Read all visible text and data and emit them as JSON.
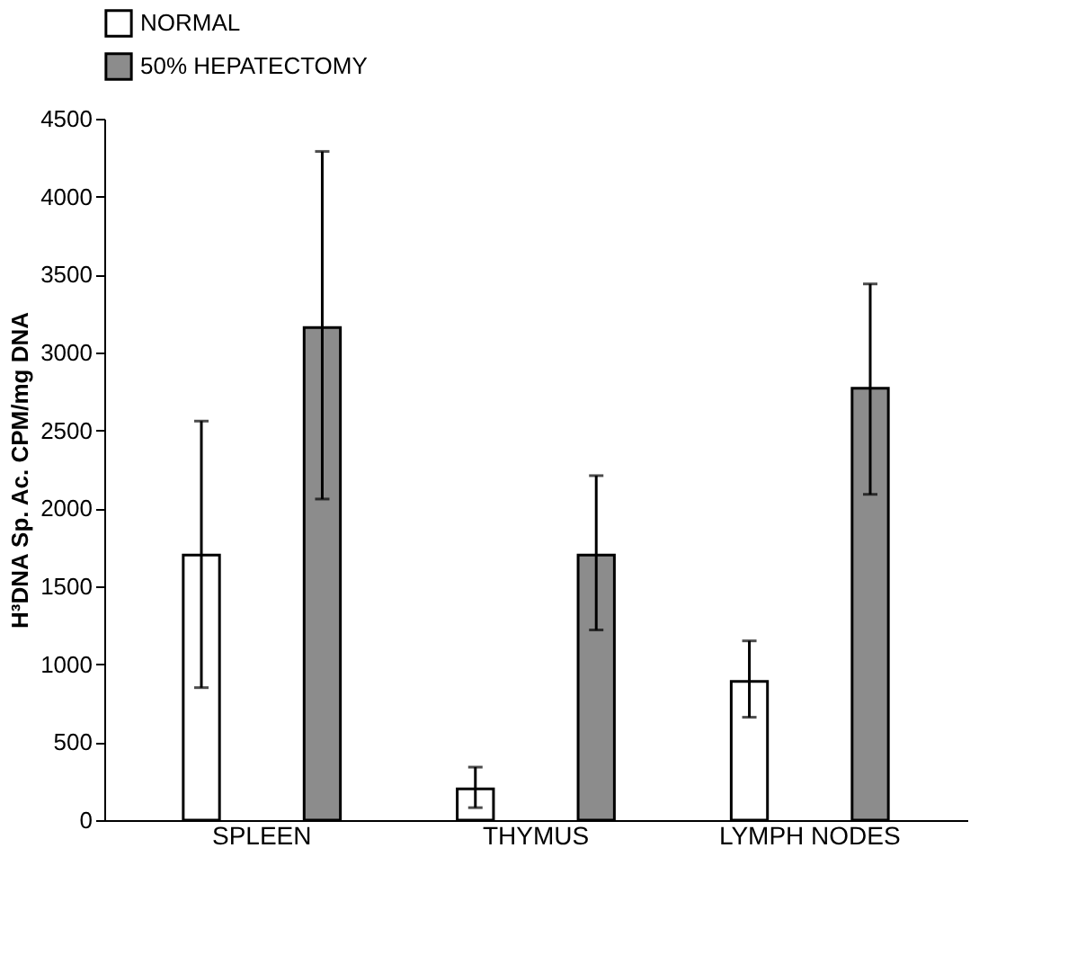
{
  "chart_data": {
    "type": "bar",
    "ylabel": "H³DNA Sp. Ac. CPM/mg DNA",
    "categories": [
      "SPLEEN",
      "THYMUS",
      "LYMPH NODES"
    ],
    "series": [
      {
        "name": "NORMAL",
        "color": "#ffffff",
        "values": [
          1700,
          200,
          890
        ],
        "errors": [
          [
            850,
            2560
          ],
          [
            80,
            340
          ],
          [
            660,
            1150
          ]
        ]
      },
      {
        "name": "50% HEPATECTOMY",
        "color": "#8c8c8c",
        "values": [
          3160,
          1700,
          2770
        ],
        "errors": [
          [
            2060,
            4290
          ],
          [
            1220,
            2210
          ],
          [
            2090,
            3440
          ]
        ]
      }
    ],
    "ylim": [
      0,
      4500
    ],
    "yticks": [
      0,
      500,
      1000,
      1500,
      2000,
      2500,
      3000,
      3500,
      4000,
      4500
    ],
    "grid": false,
    "legend": "top"
  }
}
